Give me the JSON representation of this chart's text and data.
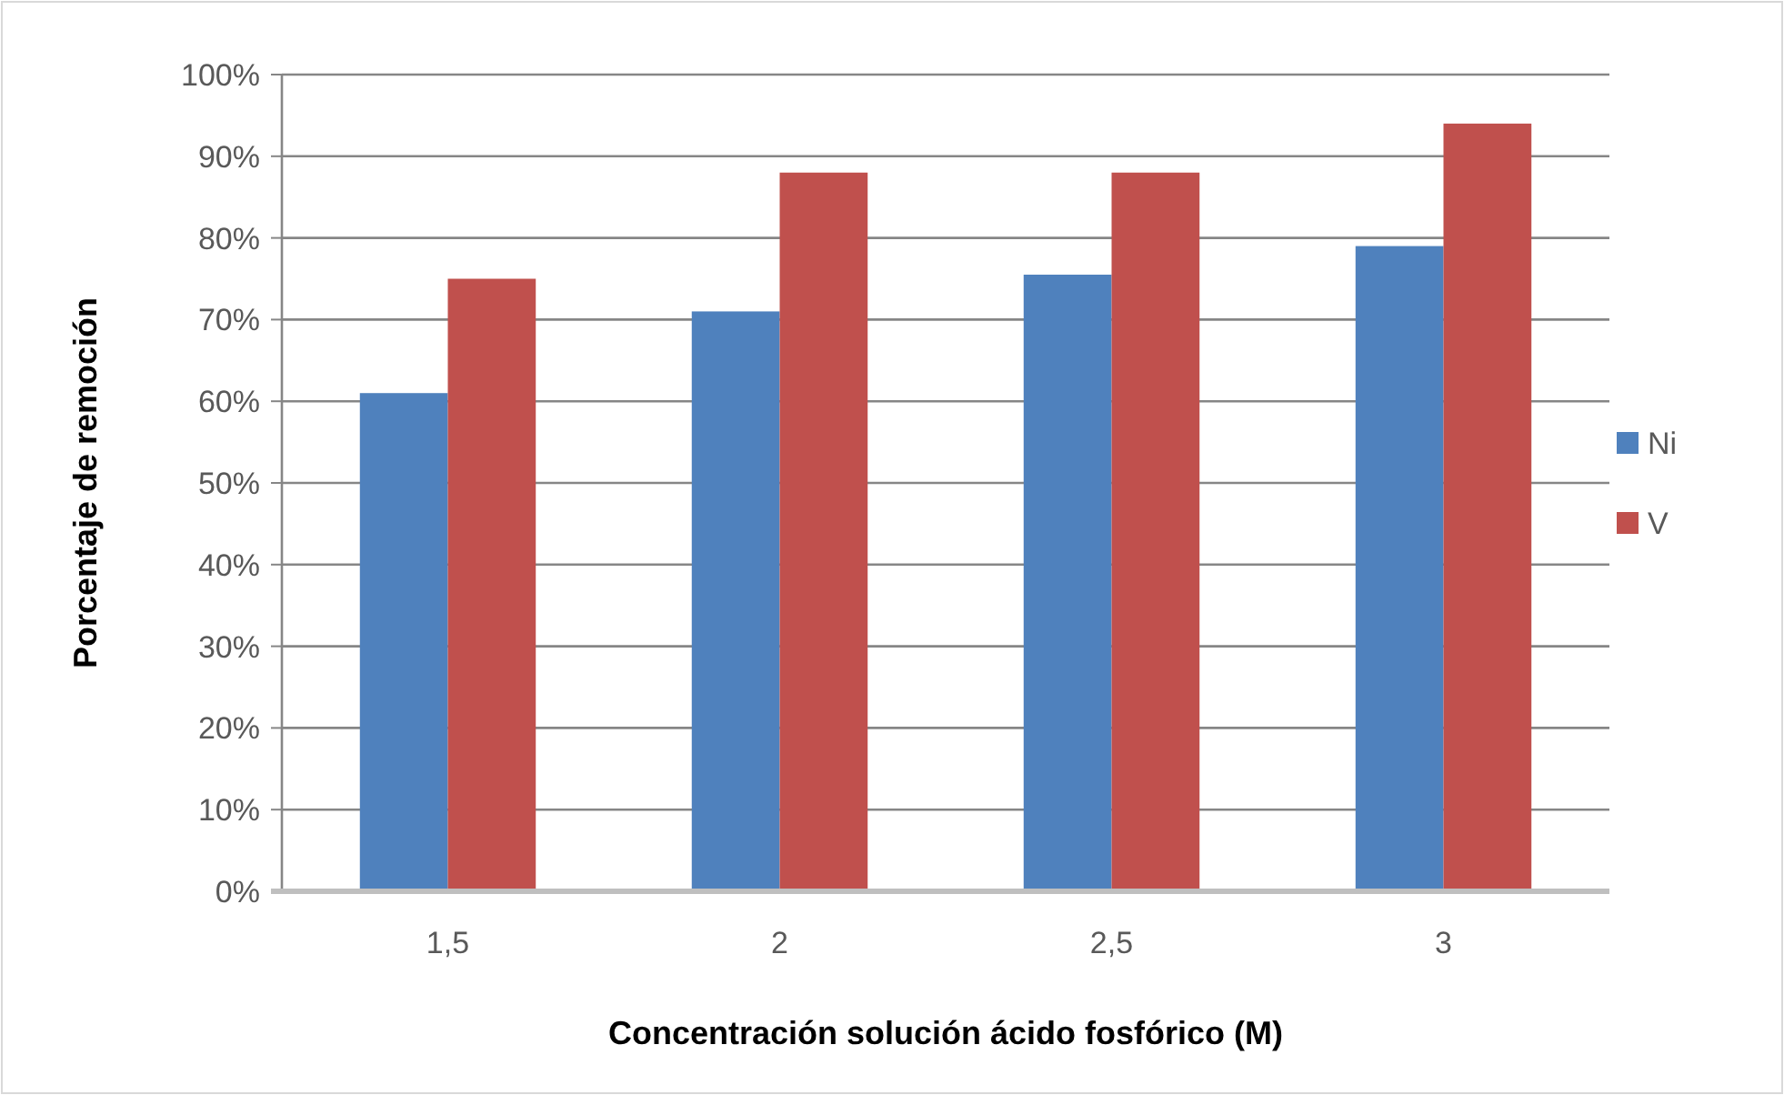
{
  "chart_data": {
    "type": "bar",
    "xlabel": "Concentración solución ácido fosfórico (M)",
    "ylabel": "Porcentaje de remoción",
    "categories": [
      "1,5",
      "2",
      "2,5",
      "3"
    ],
    "series": [
      {
        "name": "Ni",
        "color": "#4f81bd",
        "values": [
          61,
          71,
          75.5,
          79
        ]
      },
      {
        "name": "V",
        "color": "#c0504d",
        "values": [
          75,
          88,
          88,
          94
        ]
      }
    ],
    "ylim": [
      0,
      100
    ],
    "yticks": [
      {
        "value": 0,
        "label": "0%"
      },
      {
        "value": 10,
        "label": "10%"
      },
      {
        "value": 20,
        "label": "20%"
      },
      {
        "value": 30,
        "label": "30%"
      },
      {
        "value": 40,
        "label": "40%"
      },
      {
        "value": 50,
        "label": "50%"
      },
      {
        "value": 60,
        "label": "60%"
      },
      {
        "value": 70,
        "label": "70%"
      },
      {
        "value": 80,
        "label": "80%"
      },
      {
        "value": 90,
        "label": "90%"
      },
      {
        "value": 100,
        "label": "100%"
      }
    ],
    "grid": "y",
    "legend": "right"
  }
}
